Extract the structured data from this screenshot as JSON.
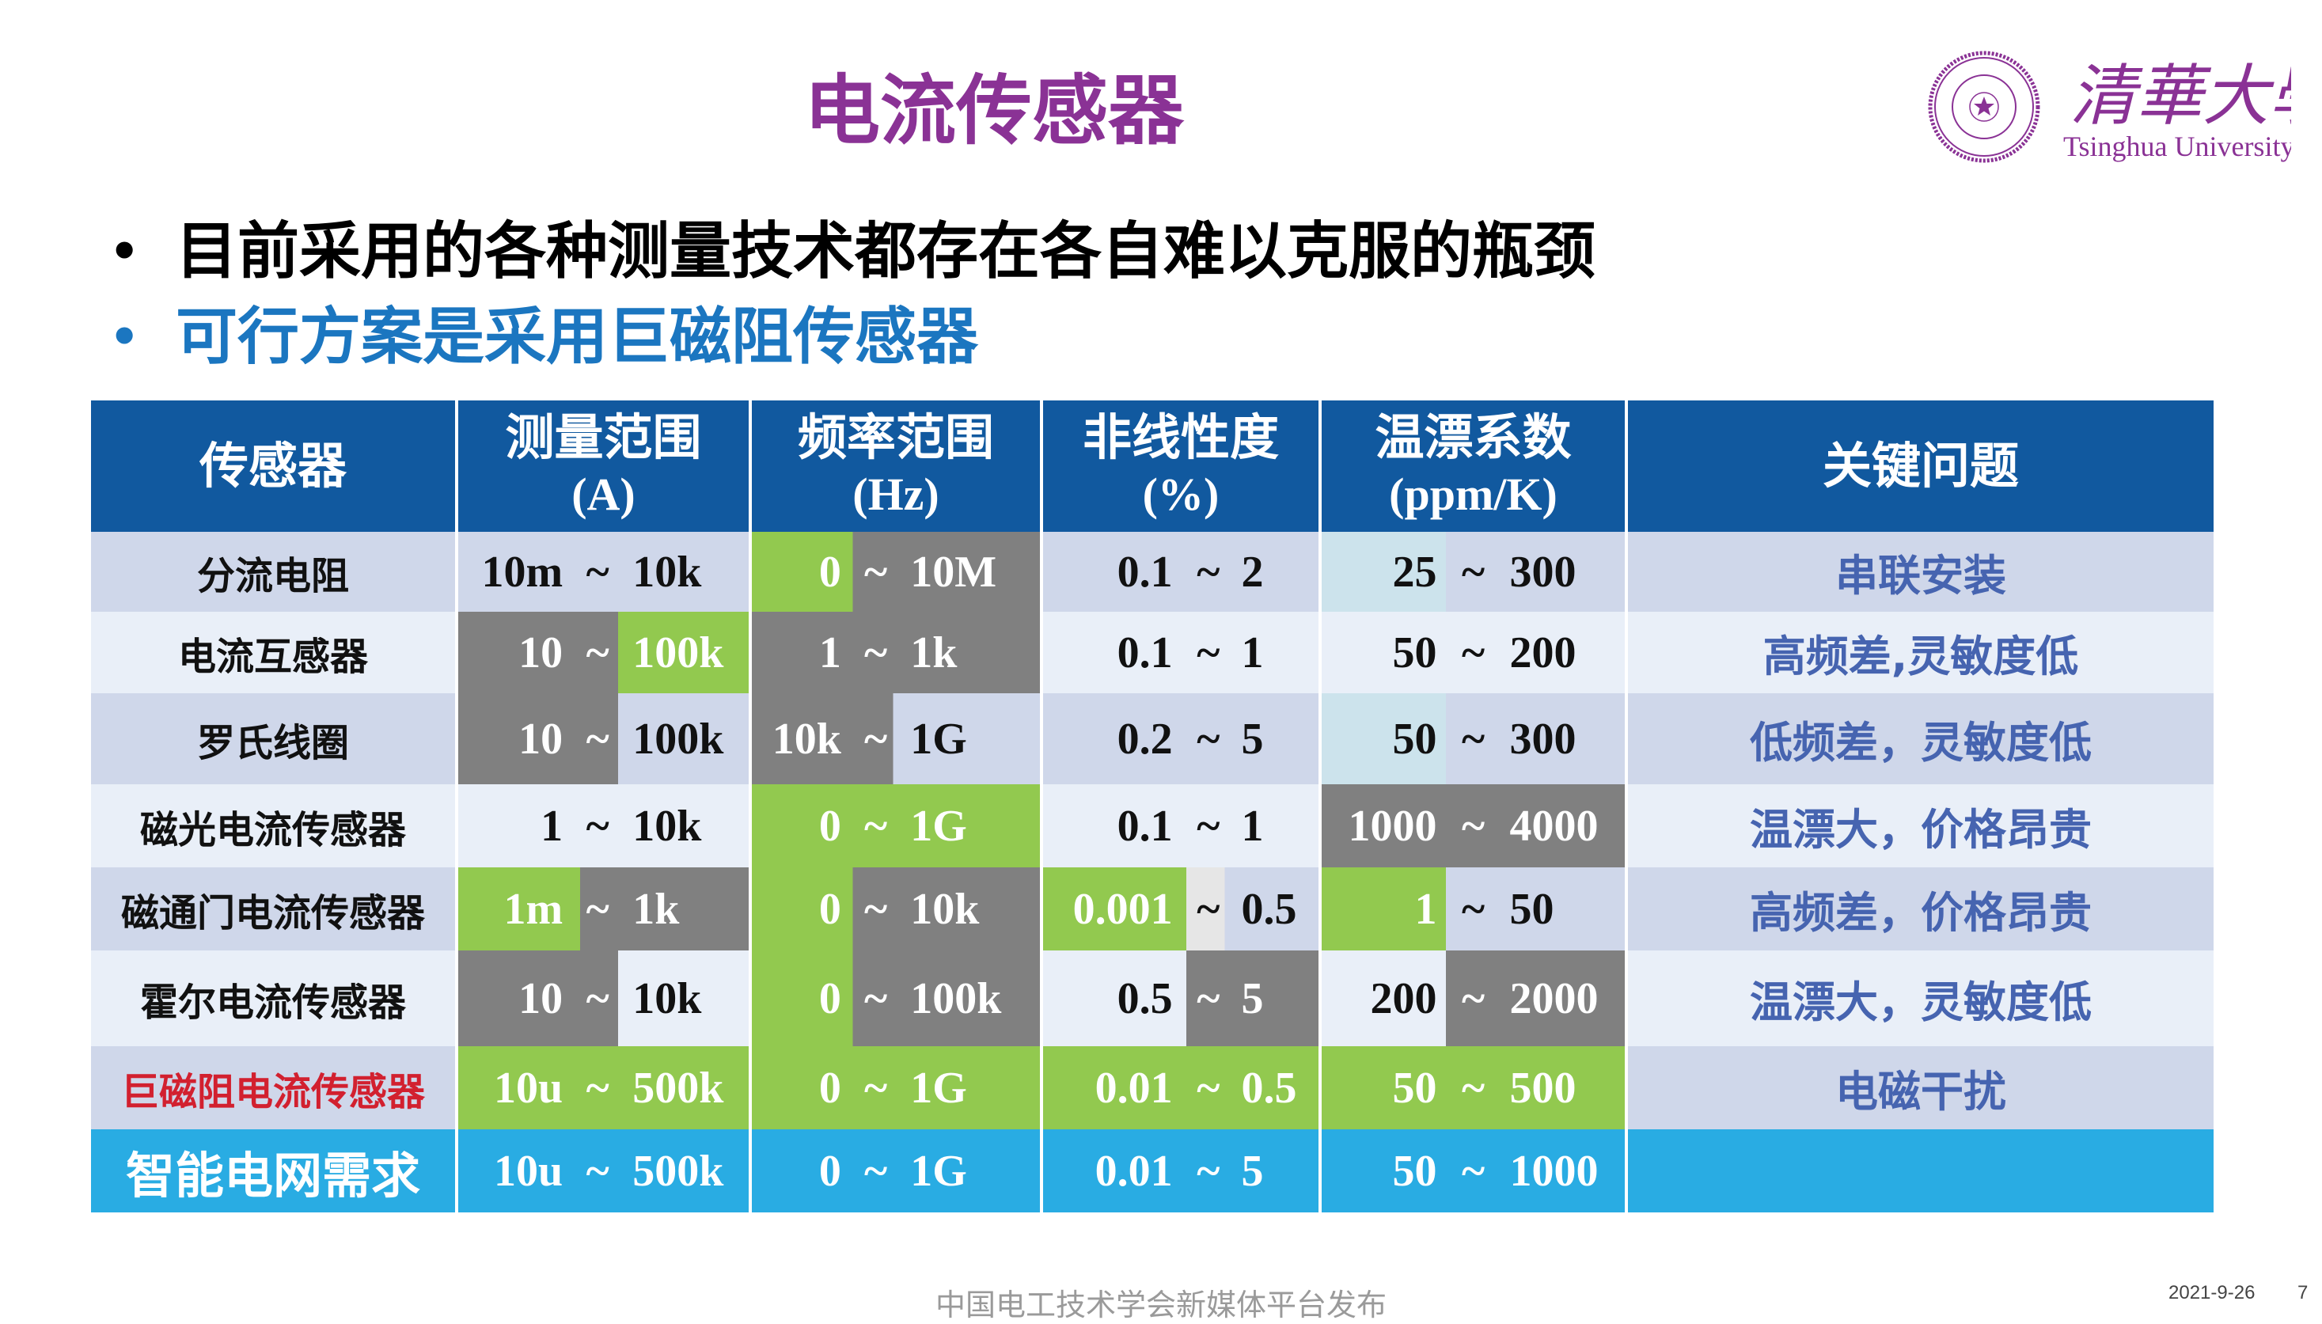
{
  "title": "电流传感器",
  "bullets": [
    {
      "text": "目前采用的各种测量技术都存在各自难以克服的瓶颈",
      "color": "#000000"
    },
    {
      "text": "可行方案是采用巨磁阻传感器",
      "color": "#1b76c0"
    }
  ],
  "logo": {
    "name_zh": "清華大學",
    "name_en": "Tsinghua University",
    "seal_text": "TSINGHUA UNIVERSITY 1911",
    "color": "#8a3295"
  },
  "colors": {
    "header": "#11599f",
    "odd": "#cfd7ea",
    "even": "#e9eff8",
    "gray": "#808080",
    "green": "#92c94f",
    "teal": "#cce3ec",
    "light": "#e6e6e6",
    "blue": "#29ace3",
    "issue_text": "#4664b0",
    "highlight_label": "#d2202f"
  },
  "table": {
    "headers": [
      {
        "zh": "传感器",
        "unit": ""
      },
      {
        "zh": "测量范围",
        "unit": "(A)"
      },
      {
        "zh": "频率范围",
        "unit": "(Hz)"
      },
      {
        "zh": "非线性度",
        "unit": "(%)"
      },
      {
        "zh": "温漂系数",
        "unit": "(ppm/K)"
      },
      {
        "zh": "关键问题",
        "unit": ""
      }
    ],
    "rows": [
      {
        "label": "分流电阻",
        "row_bg": "odd",
        "label_color": "k",
        "issue": "串联安装",
        "cells": [
          {
            "lo": "10m",
            "hi": "10k",
            "bg": [
              "odd",
              "odd",
              "odd"
            ],
            "fg": "kkk"
          },
          {
            "lo": "0",
            "hi": "10M",
            "bg": [
              "green",
              "gray",
              "gray"
            ],
            "fg": "www"
          },
          {
            "lo": "0.1",
            "hi": "2",
            "bg": [
              "odd",
              "odd",
              "odd"
            ],
            "fg": "kkk"
          },
          {
            "lo": "25",
            "hi": "300",
            "bg": [
              "teal",
              "odd",
              "odd"
            ],
            "fg": "kkk"
          }
        ]
      },
      {
        "label": "电流互感器",
        "row_bg": "even",
        "label_color": "k",
        "issue": "高频差,灵敏度低",
        "cells": [
          {
            "lo": "10",
            "hi": "100k",
            "bg": [
              "gray",
              "gray",
              "green"
            ],
            "fg": "www"
          },
          {
            "lo": "1",
            "hi": "1k",
            "bg": [
              "gray",
              "gray",
              "gray"
            ],
            "fg": "www"
          },
          {
            "lo": "0.1",
            "hi": "1",
            "bg": [
              "even",
              "even",
              "even"
            ],
            "fg": "kkk"
          },
          {
            "lo": "50",
            "hi": "200",
            "bg": [
              "even",
              "even",
              "even"
            ],
            "fg": "kkk"
          }
        ]
      },
      {
        "label": "罗氏线圈",
        "row_bg": "odd",
        "label_color": "k",
        "issue": "低频差，灵敏度低",
        "cells": [
          {
            "lo": "10",
            "hi": "100k",
            "bg": [
              "gray",
              "gray",
              "odd"
            ],
            "fg": "wwk"
          },
          {
            "lo": "10k",
            "hi": "1G",
            "bg": [
              "gray",
              "gray",
              "odd"
            ],
            "fg": "wwk"
          },
          {
            "lo": "0.2",
            "hi": "5",
            "bg": [
              "odd",
              "odd",
              "odd"
            ],
            "fg": "kkk"
          },
          {
            "lo": "50",
            "hi": "300",
            "bg": [
              "teal",
              "odd",
              "odd"
            ],
            "fg": "kkk"
          }
        ]
      },
      {
        "label": "磁光电流传感器",
        "row_bg": "even",
        "label_color": "k",
        "issue": "温漂大，价格昂贵",
        "cells": [
          {
            "lo": "1",
            "hi": "10k",
            "bg": [
              "even",
              "even",
              "even"
            ],
            "fg": "kkk"
          },
          {
            "lo": "0",
            "hi": "1G",
            "bg": [
              "green",
              "green",
              "green"
            ],
            "fg": "www"
          },
          {
            "lo": "0.1",
            "hi": "1",
            "bg": [
              "even",
              "even",
              "even"
            ],
            "fg": "kkk"
          },
          {
            "lo": "1000",
            "hi": "4000",
            "bg": [
              "gray",
              "gray",
              "gray"
            ],
            "fg": "www"
          }
        ]
      },
      {
        "label": "磁通门电流传感器",
        "row_bg": "odd",
        "label_color": "k",
        "issue": "高频差，价格昂贵",
        "cells": [
          {
            "lo": "1m",
            "hi": "1k",
            "bg": [
              "green",
              "gray",
              "gray"
            ],
            "fg": "www"
          },
          {
            "lo": "0",
            "hi": "10k",
            "bg": [
              "green",
              "gray",
              "gray"
            ],
            "fg": "www"
          },
          {
            "lo": "0.001",
            "hi": "0.5",
            "bg": [
              "green",
              "light",
              "odd"
            ],
            "fg": "wkk"
          },
          {
            "lo": "1",
            "hi": "50",
            "bg": [
              "green",
              "odd",
              "odd"
            ],
            "fg": "wkk"
          }
        ]
      },
      {
        "label": "霍尔电流传感器",
        "row_bg": "even",
        "label_color": "k",
        "issue": "温漂大，灵敏度低",
        "cells": [
          {
            "lo": "10",
            "hi": "10k",
            "bg": [
              "gray",
              "gray",
              "even"
            ],
            "fg": "wwk"
          },
          {
            "lo": "0",
            "hi": "100k",
            "bg": [
              "green",
              "gray",
              "gray"
            ],
            "fg": "www"
          },
          {
            "lo": "0.5",
            "hi": "5",
            "bg": [
              "even",
              "gray",
              "gray"
            ],
            "fg": "kww"
          },
          {
            "lo": "200",
            "hi": "2000",
            "bg": [
              "even",
              "gray",
              "gray"
            ],
            "fg": "kww"
          }
        ]
      },
      {
        "label": "巨磁阻电流传感器",
        "row_bg": "odd",
        "label_color": "r",
        "issue": "电磁干扰",
        "cells": [
          {
            "lo": "10u",
            "hi": "500k",
            "bg": [
              "green",
              "green",
              "green"
            ],
            "fg": "www"
          },
          {
            "lo": "0",
            "hi": "1G",
            "bg": [
              "green",
              "green",
              "green"
            ],
            "fg": "www"
          },
          {
            "lo": "0.01",
            "hi": "0.5",
            "bg": [
              "green",
              "green",
              "green"
            ],
            "fg": "www"
          },
          {
            "lo": "50",
            "hi": "500",
            "bg": [
              "green",
              "green",
              "green"
            ],
            "fg": "www"
          }
        ]
      },
      {
        "label": "智能电网需求",
        "row_bg": "blue",
        "label_color": "w",
        "issue": "",
        "cells": [
          {
            "lo": "10u",
            "hi": "500k",
            "bg": [
              "blue",
              "blue",
              "blue"
            ],
            "fg": "www"
          },
          {
            "lo": "0",
            "hi": "1G",
            "bg": [
              "blue",
              "blue",
              "blue"
            ],
            "fg": "www"
          },
          {
            "lo": "0.01",
            "hi": "5",
            "bg": [
              "blue",
              "blue",
              "blue"
            ],
            "fg": "www"
          },
          {
            "lo": "50",
            "hi": "1000",
            "bg": [
              "blue",
              "blue",
              "blue"
            ],
            "fg": "www"
          }
        ]
      }
    ],
    "tilde": "~"
  },
  "footer": {
    "source": "中国电工技术学会新媒体平台发布",
    "date": "2021-9-26",
    "page": "7"
  }
}
